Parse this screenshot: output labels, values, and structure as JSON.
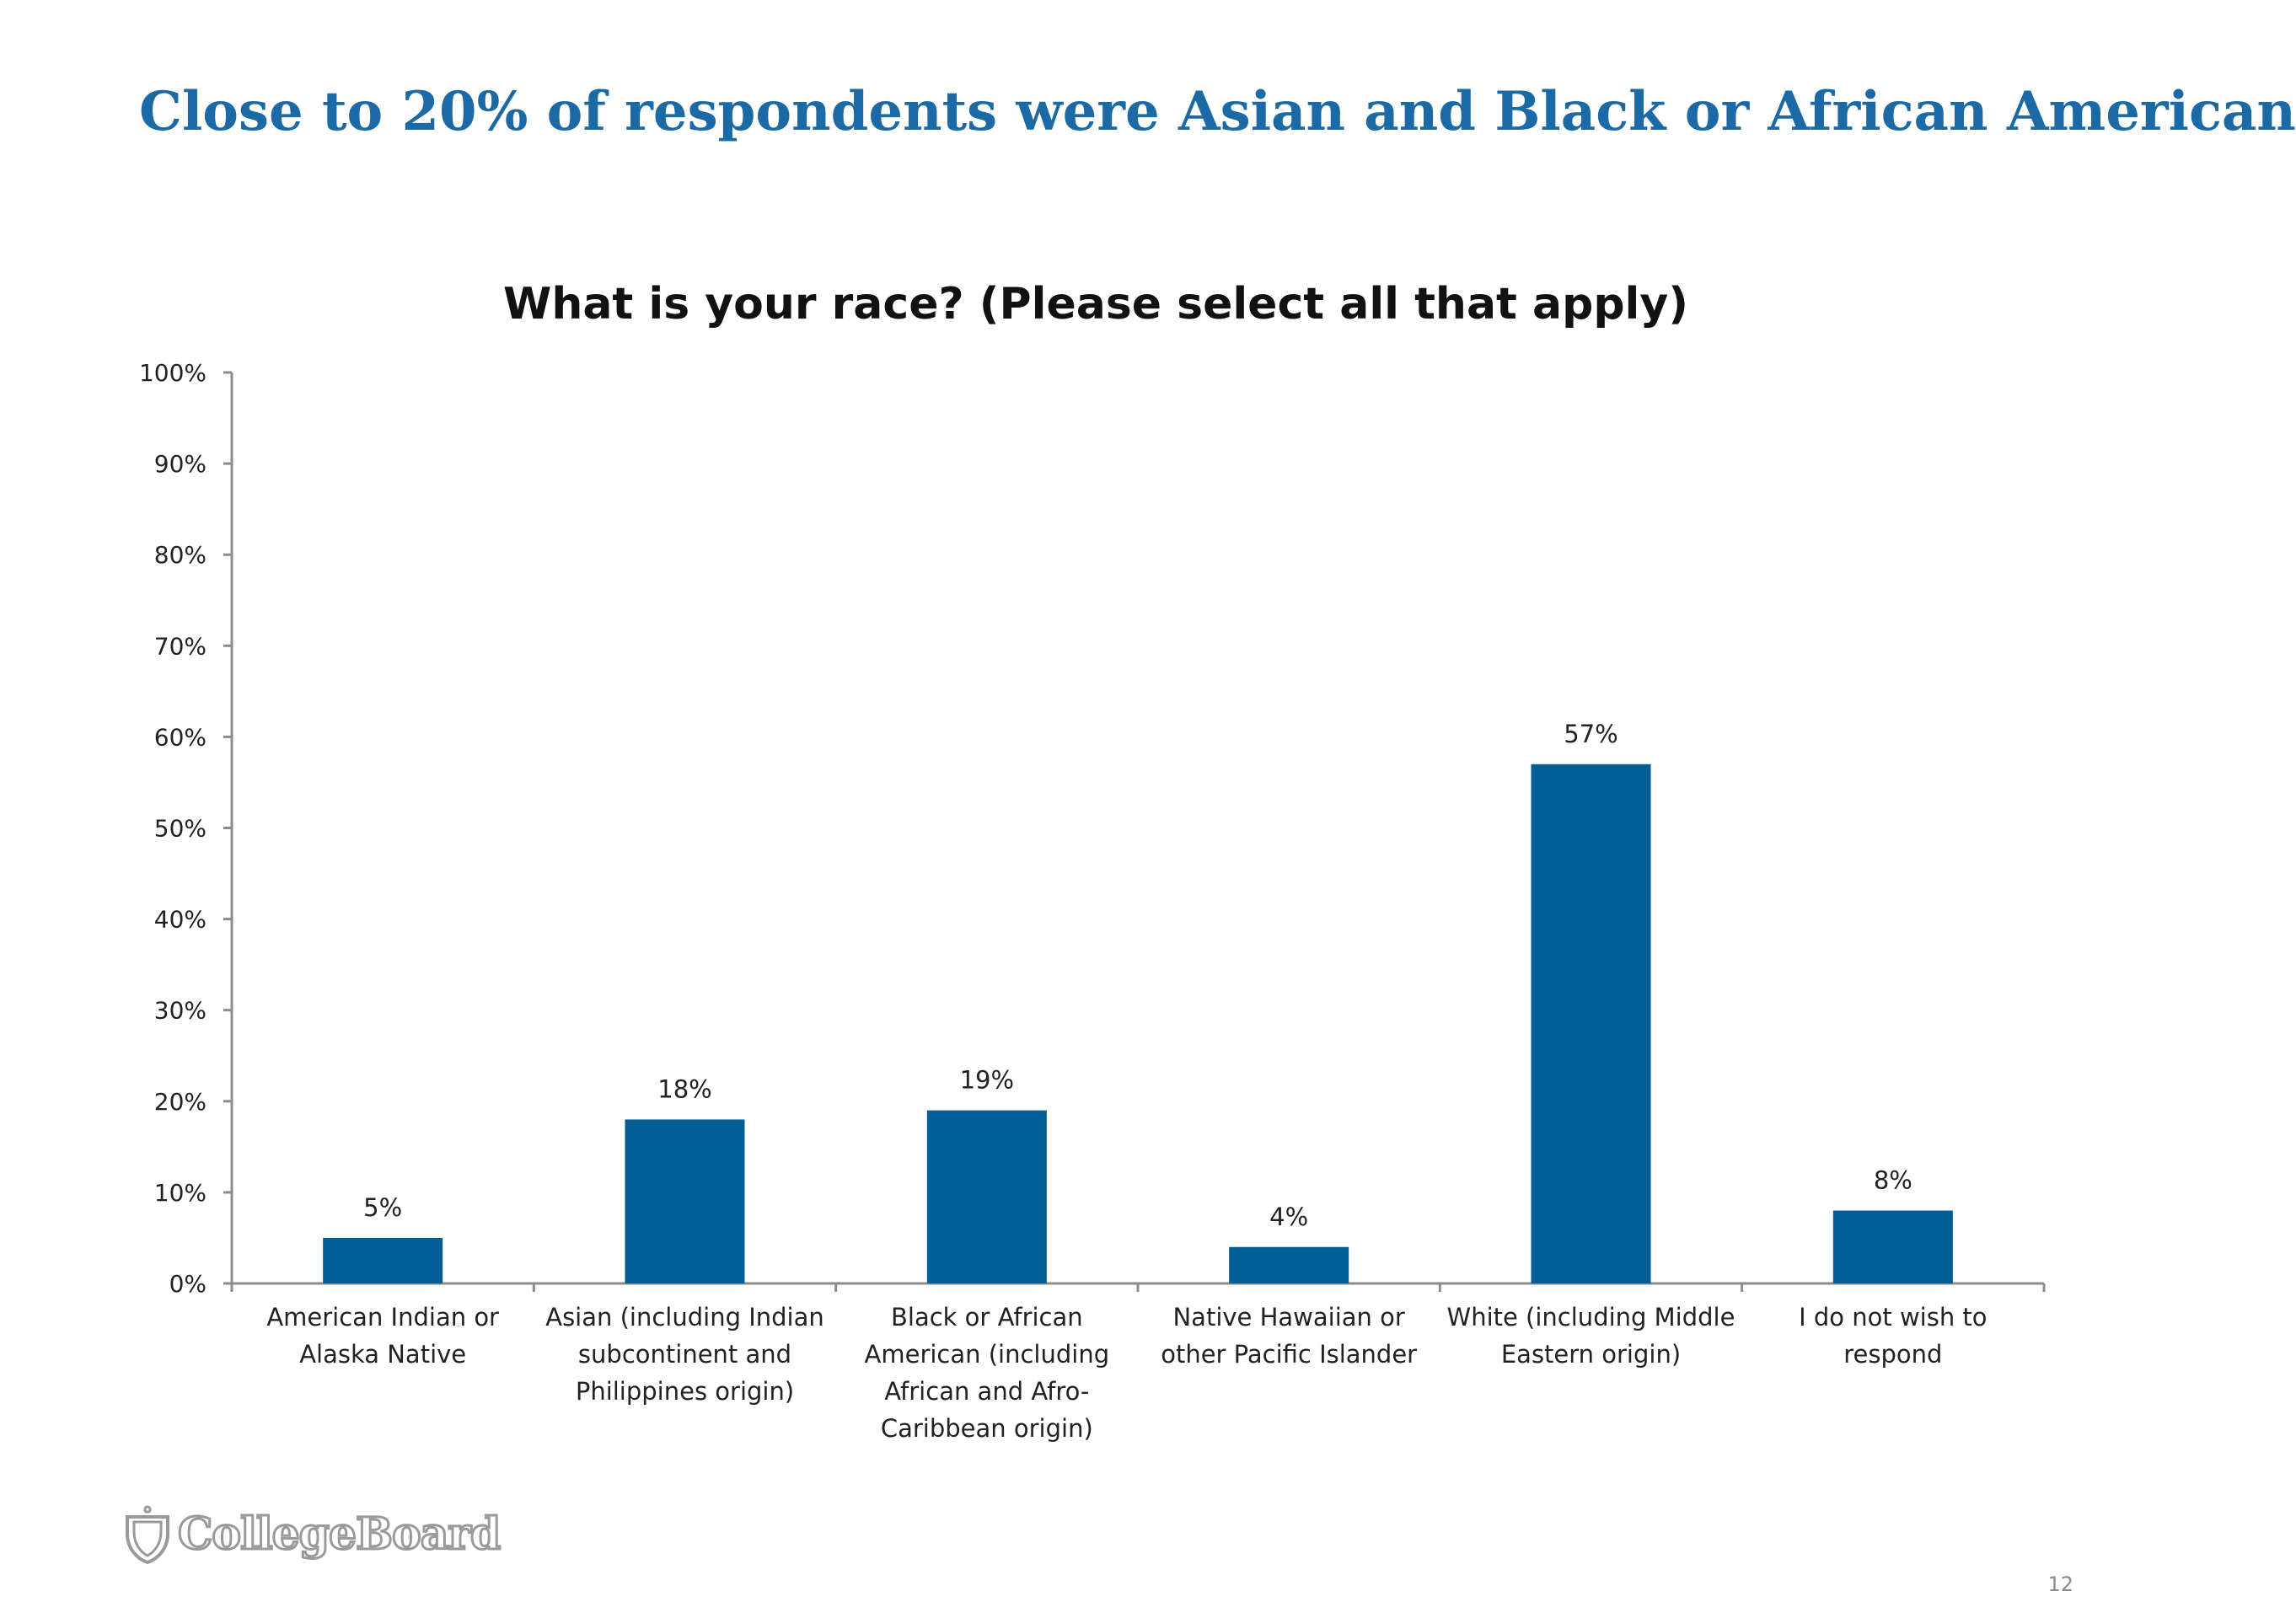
{
  "slide": {
    "title": "Close to 20% of respondents were Asian and Black or African American",
    "page_number": "12",
    "title_color": "#1b6aa6"
  },
  "logo": {
    "text": "CollegeBoard",
    "icon": "acorn-icon"
  },
  "chart_data": {
    "type": "bar",
    "title": "What is your race? (Please select all that apply)",
    "xlabel": "",
    "ylabel": "",
    "ylim": [
      0,
      100
    ],
    "yticks": [
      "0%",
      "10%",
      "20%",
      "30%",
      "40%",
      "50%",
      "60%",
      "70%",
      "80%",
      "90%",
      "100%"
    ],
    "bar_color": "#035e96",
    "grid": false,
    "categories": [
      [
        "American Indian or",
        "Alaska Native"
      ],
      [
        "Asian (including Indian",
        "subcontinent and",
        "Philippines origin)"
      ],
      [
        "Black or African",
        "American (including",
        "African and Afro-",
        "Caribbean origin)"
      ],
      [
        "Native Hawaiian or",
        "other Pacific Islander"
      ],
      [
        "White (including Middle",
        "Eastern origin)"
      ],
      [
        "I do not wish to",
        "respond"
      ]
    ],
    "values": [
      5,
      18,
      19,
      4,
      57,
      8
    ],
    "data_labels": [
      "5%",
      "18%",
      "19%",
      "4%",
      "57%",
      "8%"
    ]
  }
}
